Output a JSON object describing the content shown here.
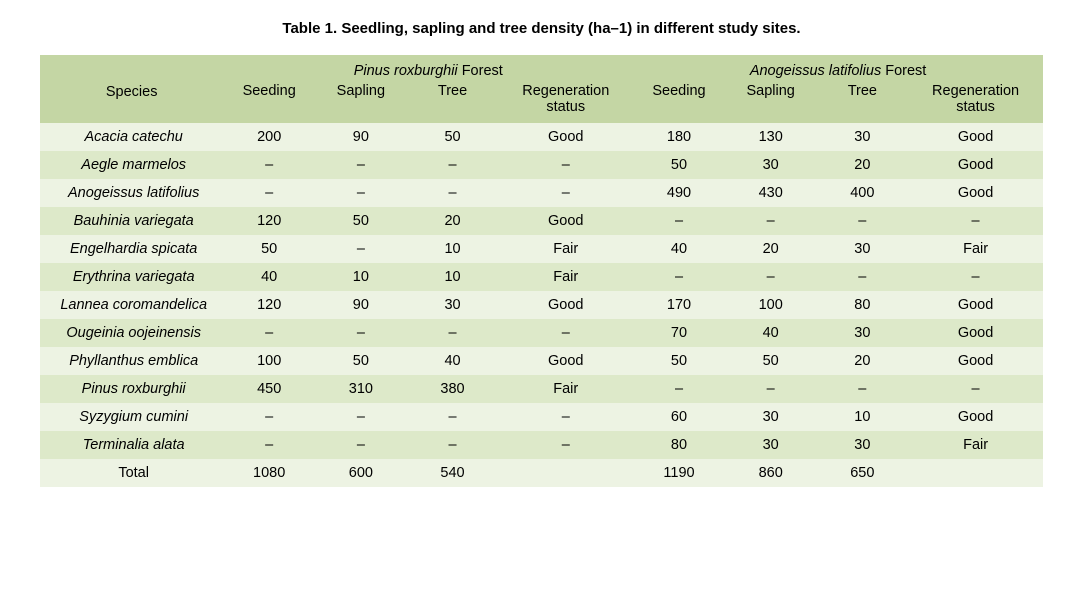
{
  "caption": "Table 1. Seedling, sapling and tree density (ha–1) in different study sites.",
  "header": {
    "species": "Species",
    "forest1_name_italic": "Pinus roxburghii",
    "forest1_name_tail": " Forest",
    "forest2_name_italic": "Anogeissus latifolius",
    "forest2_name_tail": " Forest",
    "sub": {
      "seeding": "Seeding",
      "sapling": "Sapling",
      "tree": "Tree",
      "regen": "Regeneration status"
    }
  },
  "rows": [
    {
      "species": "Acacia catechu",
      "f1": {
        "seeding": "200",
        "sapling": "90",
        "tree": "50",
        "regen": "Good"
      },
      "f2": {
        "seeding": "180",
        "sapling": "130",
        "tree": "30",
        "regen": "Good"
      }
    },
    {
      "species": "Aegle marmelos",
      "f1": {
        "seeding": "–",
        "sapling": "–",
        "tree": "–",
        "regen": "–"
      },
      "f2": {
        "seeding": "50",
        "sapling": "30",
        "tree": "20",
        "regen": "Good"
      }
    },
    {
      "species": "Anogeissus latifolius",
      "f1": {
        "seeding": "–",
        "sapling": "–",
        "tree": "–",
        "regen": "–"
      },
      "f2": {
        "seeding": "490",
        "sapling": "430",
        "tree": "400",
        "regen": "Good"
      }
    },
    {
      "species": "Bauhinia variegata",
      "f1": {
        "seeding": "120",
        "sapling": "50",
        "tree": "20",
        "regen": "Good"
      },
      "f2": {
        "seeding": "–",
        "sapling": "–",
        "tree": "–",
        "regen": "–"
      }
    },
    {
      "species": "Engelhardia spicata",
      "f1": {
        "seeding": "50",
        "sapling": "–",
        "tree": "10",
        "regen": "Fair"
      },
      "f2": {
        "seeding": "40",
        "sapling": "20",
        "tree": "30",
        "regen": "Fair"
      }
    },
    {
      "species": "Erythrina  variegata",
      "f1": {
        "seeding": "40",
        "sapling": "10",
        "tree": "10",
        "regen": "Fair"
      },
      "f2": {
        "seeding": "–",
        "sapling": "–",
        "tree": "–",
        "regen": "–"
      }
    },
    {
      "species": "Lannea coromandelica",
      "f1": {
        "seeding": "120",
        "sapling": "90",
        "tree": "30",
        "regen": "Good"
      },
      "f2": {
        "seeding": "170",
        "sapling": "100",
        "tree": "80",
        "regen": "Good"
      }
    },
    {
      "species": "Ougeinia oojeinensis",
      "f1": {
        "seeding": "–",
        "sapling": "–",
        "tree": "–",
        "regen": "–"
      },
      "f2": {
        "seeding": "70",
        "sapling": "40",
        "tree": "30",
        "regen": "Good"
      }
    },
    {
      "species": "Phyllanthus emblica",
      "f1": {
        "seeding": "100",
        "sapling": "50",
        "tree": "40",
        "regen": "Good"
      },
      "f2": {
        "seeding": "50",
        "sapling": "50",
        "tree": "20",
        "regen": "Good"
      }
    },
    {
      "species": "Pinus roxburghii",
      "f1": {
        "seeding": "450",
        "sapling": "310",
        "tree": "380",
        "regen": "Fair"
      },
      "f2": {
        "seeding": "–",
        "sapling": "–",
        "tree": "–",
        "regen": "–"
      }
    },
    {
      "species": "Syzygium cumini",
      "f1": {
        "seeding": "–",
        "sapling": "–",
        "tree": "–",
        "regen": "–"
      },
      "f2": {
        "seeding": "60",
        "sapling": "30",
        "tree": "10",
        "regen": "Good"
      }
    },
    {
      "species": "Terminalia alata",
      "f1": {
        "seeding": "–",
        "sapling": "–",
        "tree": "–",
        "regen": "–"
      },
      "f2": {
        "seeding": "80",
        "sapling": "30",
        "tree": "30",
        "regen": "Fair"
      }
    }
  ],
  "total": {
    "label": "Total",
    "f1": {
      "seeding": "1080",
      "sapling": "600",
      "tree": "540",
      "regen": ""
    },
    "f2": {
      "seeding": "1190",
      "sapling": "860",
      "tree": "650",
      "regen": ""
    }
  },
  "colors": {
    "band_head": "#c4d6a4",
    "band_light": "#edf3e3",
    "band_dark": "#dde9c9",
    "text": "#000000"
  }
}
